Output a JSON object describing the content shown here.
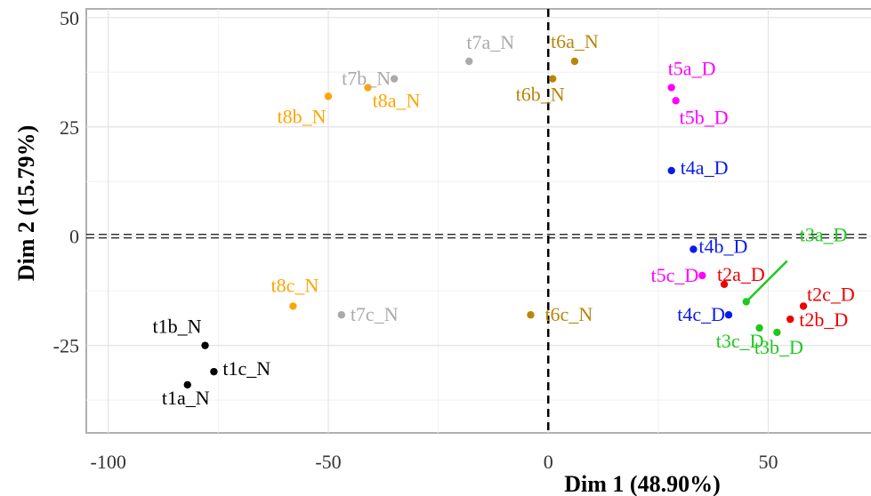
{
  "chart_data": {
    "type": "scatter",
    "title": "",
    "xlabel": "Dim 1 (48.90%)",
    "ylabel": "Dim 2 (15.79%)",
    "xlim": [
      -105,
      77
    ],
    "ylim": [
      -45,
      52
    ],
    "xticks": [
      -100,
      -50,
      0,
      50
    ],
    "yticks": [
      -25,
      0,
      25,
      50
    ],
    "xtick_labels": [
      "-100",
      "-50",
      "0",
      "50"
    ],
    "ytick_labels": [
      "-25",
      "0",
      "25",
      "50"
    ],
    "grid": true,
    "reference_lines": {
      "x": 0,
      "y": 0
    },
    "points": [
      {
        "label": "t1a_N",
        "x": -82,
        "y": -34,
        "color": "#000000"
      },
      {
        "label": "t1b_N",
        "x": -78,
        "y": -25,
        "color": "#000000"
      },
      {
        "label": "t1c_N",
        "x": -76,
        "y": -31,
        "color": "#000000"
      },
      {
        "label": "t2a_D",
        "x": 40,
        "y": -11,
        "color": "#ee0000"
      },
      {
        "label": "t2b_D",
        "x": 55,
        "y": -19,
        "color": "#ee0000"
      },
      {
        "label": "t2c_D",
        "x": 58,
        "y": -16,
        "color": "#ee0000"
      },
      {
        "label": "t3a_D",
        "x": 45,
        "y": -15,
        "color": "#1ec81e"
      },
      {
        "label": "t3b_D",
        "x": 52,
        "y": -22,
        "color": "#1ec81e"
      },
      {
        "label": "t3c_D",
        "x": 48,
        "y": -21,
        "color": "#1ec81e"
      },
      {
        "label": "t4a_D",
        "x": 28,
        "y": 15,
        "color": "#0a1aee"
      },
      {
        "label": "t4b_D",
        "x": 33,
        "y": -3,
        "color": "#0a1aee"
      },
      {
        "label": "t4c_D",
        "x": 41,
        "y": -18,
        "color": "#0a1aee"
      },
      {
        "label": "t5a_D",
        "x": 28,
        "y": 34,
        "color": "#ff00ff"
      },
      {
        "label": "t5b_D",
        "x": 29,
        "y": 31,
        "color": "#ff00ff"
      },
      {
        "label": "t5c_D",
        "x": 35,
        "y": -9,
        "color": "#ff00ff"
      },
      {
        "label": "t6a_N",
        "x": 6,
        "y": 40,
        "color": "#b8860b"
      },
      {
        "label": "t6b_N",
        "x": 1,
        "y": 36,
        "color": "#b8860b"
      },
      {
        "label": "t6c_N",
        "x": -4,
        "y": -18,
        "color": "#b8860b"
      },
      {
        "label": "t7a_N",
        "x": -18,
        "y": 40,
        "color": "#aaaaaa"
      },
      {
        "label": "t7b_N",
        "x": -35,
        "y": 36,
        "color": "#aaaaaa"
      },
      {
        "label": "t7c_N",
        "x": -47,
        "y": -18,
        "color": "#aaaaaa"
      },
      {
        "label": "t8a_N",
        "x": -41,
        "y": 34,
        "color": "#ffa500"
      },
      {
        "label": "t8b_N",
        "x": -50,
        "y": 32,
        "color": "#ffa500"
      },
      {
        "label": "t8c_N",
        "x": -58,
        "y": -16,
        "color": "#ffa500"
      }
    ]
  }
}
